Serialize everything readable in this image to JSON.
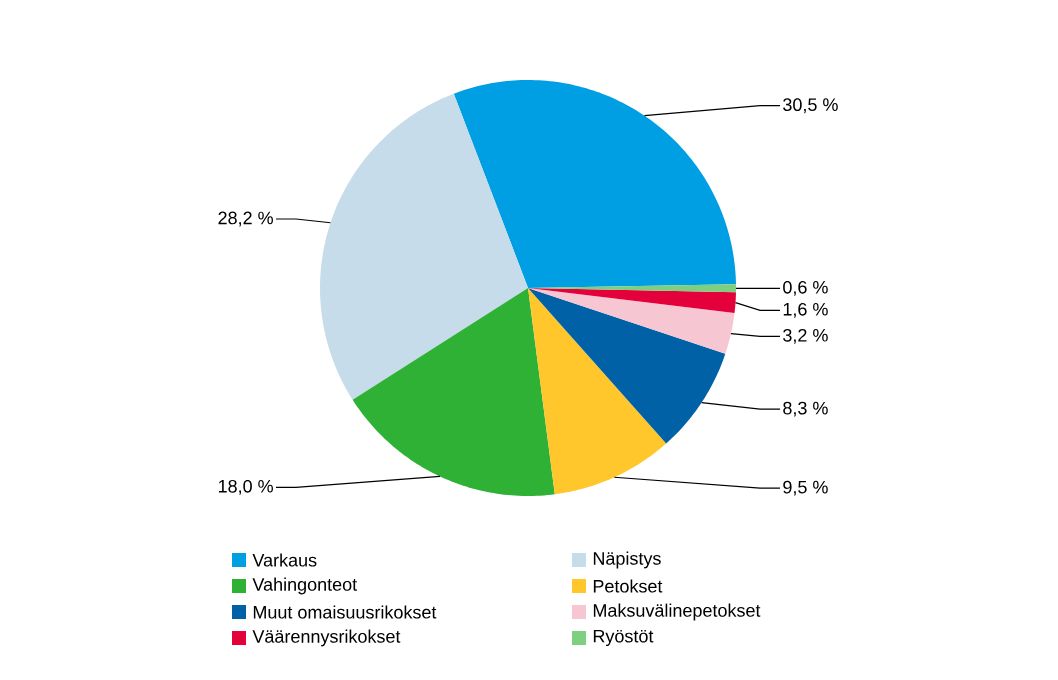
{
  "chart_data": {
    "type": "pie",
    "categories": [
      "Varkaus",
      "Näpistys",
      "Vahingonteot",
      "Petokset",
      "Muut omaisuusrikokset",
      "Maksuvälinepetokset",
      "Väärennysrikokset",
      "Ryöstöt"
    ],
    "values": [
      30.5,
      28.2,
      18.0,
      9.5,
      8.3,
      3.2,
      1.6,
      0.6
    ],
    "colors": [
      "#009fe3",
      "#c6dcea",
      "#2eb135",
      "#ffc72c",
      "#0061a6",
      "#f7c6d3",
      "#e4003a",
      "#7ecf7f"
    ],
    "value_labels": [
      "30,5 %",
      "28,2 %",
      "18,0 %",
      "9,5 %",
      "8,3 %",
      "3,2 %",
      "1,6 %",
      "0,6 %"
    ],
    "legend": "bottom"
  }
}
